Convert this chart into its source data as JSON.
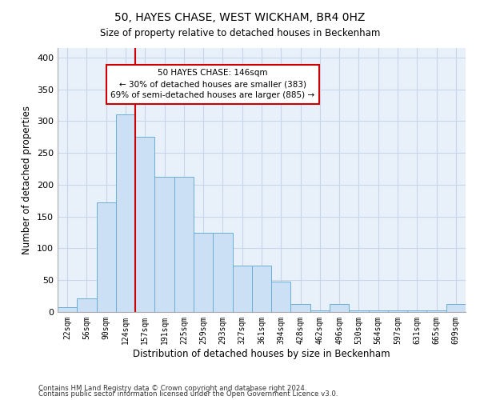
{
  "title": "50, HAYES CHASE, WEST WICKHAM, BR4 0HZ",
  "subtitle": "Size of property relative to detached houses in Beckenham",
  "xlabel": "Distribution of detached houses by size in Beckenham",
  "ylabel": "Number of detached properties",
  "bar_color": "#cce0f5",
  "bar_edge_color": "#6baed6",
  "bg_color": "#e8f0fa",
  "grid_color": "#d0d8e8",
  "categories": [
    "22sqm",
    "56sqm",
    "90sqm",
    "124sqm",
    "157sqm",
    "191sqm",
    "225sqm",
    "259sqm",
    "293sqm",
    "327sqm",
    "361sqm",
    "394sqm",
    "428sqm",
    "462sqm",
    "496sqm",
    "530sqm",
    "564sqm",
    "597sqm",
    "631sqm",
    "665sqm",
    "699sqm"
  ],
  "values": [
    7,
    22,
    172,
    310,
    276,
    212,
    212,
    125,
    125,
    73,
    73,
    48,
    13,
    2,
    13,
    2,
    2,
    2,
    2,
    2,
    13
  ],
  "property_line_xidx": 4,
  "property_line_color": "#cc0000",
  "annotation_text": "50 HAYES CHASE: 146sqm\n← 30% of detached houses are smaller (383)\n69% of semi-detached houses are larger (885) →",
  "annotation_box_color": "#ffffff",
  "annotation_box_edge_color": "#cc0000",
  "ylim": [
    0,
    415
  ],
  "yticks": [
    0,
    50,
    100,
    150,
    200,
    250,
    300,
    350,
    400
  ],
  "footnote1": "Contains HM Land Registry data © Crown copyright and database right 2024.",
  "footnote2": "Contains public sector information licensed under the Open Government Licence v3.0."
}
